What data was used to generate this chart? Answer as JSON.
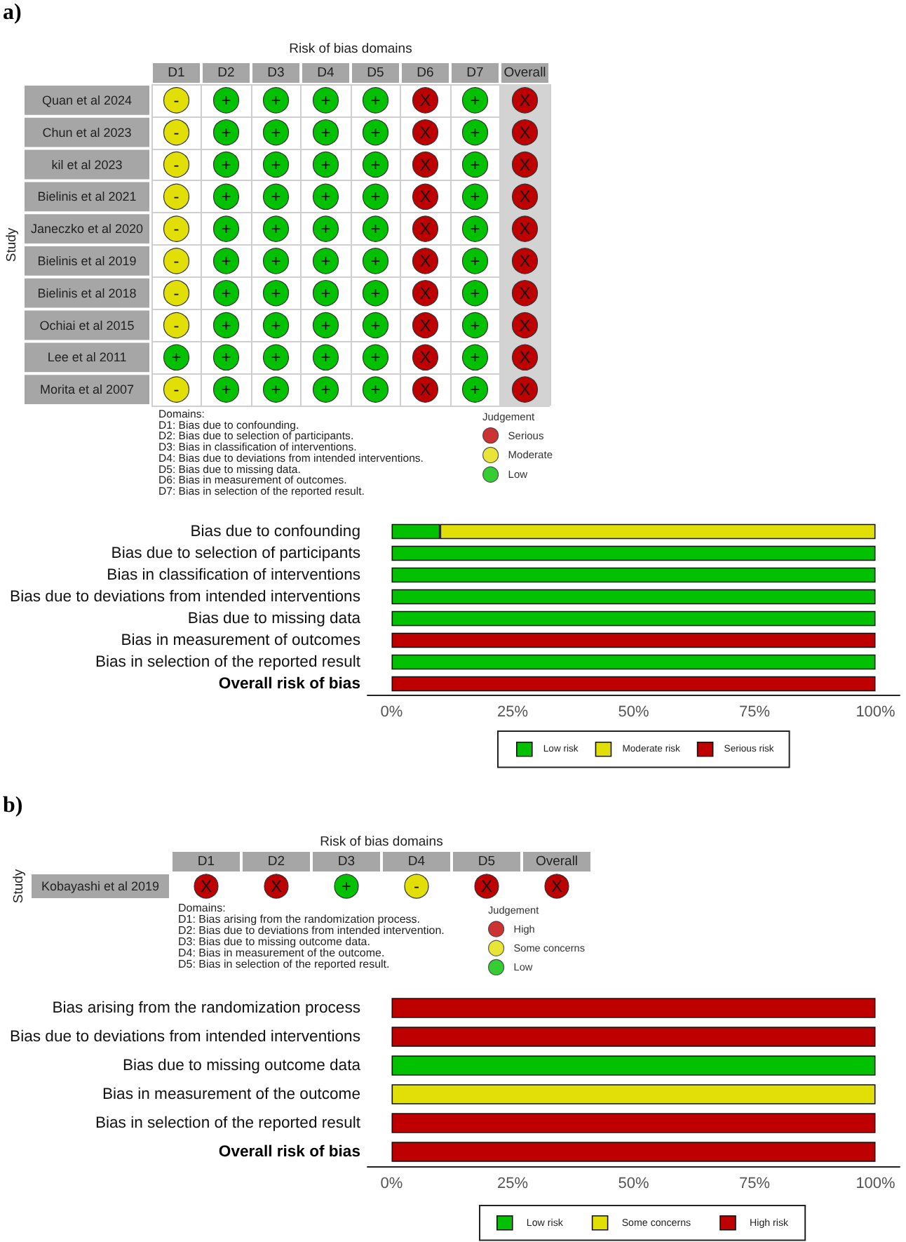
{
  "chart_data": [
    {
      "type": "heatmap",
      "title": "a)",
      "xlabel": "Risk of bias domains",
      "ylabel": "Study",
      "legend_title": "Judgement",
      "legend": "bottom right",
      "categories": [
        "D1",
        "D2",
        "D3",
        "D4",
        "D5",
        "D6",
        "D7",
        "Overall"
      ],
      "y_categories": [
        "Quan et al 2024",
        "Chun et al 2023",
        "kil et al 2023",
        "Bielinis et al 2021",
        "Janeczko et al 2020",
        "Bielinis et al 2019",
        "Bielinis et al 2018",
        "Ochiai et al 2015",
        "Lee et al 2011",
        "Morita et al 2007"
      ],
      "cells": [
        [
          "-",
          "+",
          "+",
          "+",
          "+",
          "X",
          "+",
          "X"
        ],
        [
          "-",
          "+",
          "+",
          "+",
          "+",
          "X",
          "+",
          "X"
        ],
        [
          "-",
          "+",
          "+",
          "+",
          "+",
          "X",
          "+",
          "X"
        ],
        [
          "-",
          "+",
          "+",
          "+",
          "+",
          "X",
          "+",
          "X"
        ],
        [
          "-",
          "+",
          "+",
          "+",
          "+",
          "X",
          "+",
          "X"
        ],
        [
          "-",
          "+",
          "+",
          "+",
          "+",
          "X",
          "+",
          "X"
        ],
        [
          "-",
          "+",
          "+",
          "+",
          "+",
          "X",
          "+",
          "X"
        ],
        [
          "-",
          "+",
          "+",
          "+",
          "+",
          "X",
          "+",
          "X"
        ],
        [
          "+",
          "+",
          "+",
          "+",
          "+",
          "X",
          "+",
          "X"
        ],
        [
          "-",
          "+",
          "+",
          "+",
          "+",
          "X",
          "+",
          "X"
        ]
      ],
      "colors": [
        [
          "#e2df07",
          "#02c100",
          "#02c100",
          "#02c100",
          "#02c100",
          "#bf0000",
          "#02c100",
          "#bf0000"
        ],
        [
          "#e2df07",
          "#02c100",
          "#02c100",
          "#02c100",
          "#02c100",
          "#bf0000",
          "#02c100",
          "#bf0000"
        ],
        [
          "#e2df07",
          "#02c100",
          "#02c100",
          "#02c100",
          "#02c100",
          "#bf0000",
          "#02c100",
          "#bf0000"
        ],
        [
          "#e2df07",
          "#02c100",
          "#02c100",
          "#02c100",
          "#02c100",
          "#bf0000",
          "#02c100",
          "#bf0000"
        ],
        [
          "#e2df07",
          "#02c100",
          "#02c100",
          "#02c100",
          "#02c100",
          "#bf0000",
          "#02c100",
          "#bf0000"
        ],
        [
          "#e2df07",
          "#02c100",
          "#02c100",
          "#02c100",
          "#02c100",
          "#bf0000",
          "#02c100",
          "#bf0000"
        ],
        [
          "#e2df07",
          "#02c100",
          "#02c100",
          "#02c100",
          "#02c100",
          "#bf0000",
          "#02c100",
          "#bf0000"
        ],
        [
          "#e2df07",
          "#02c100",
          "#02c100",
          "#02c100",
          "#02c100",
          "#bf0000",
          "#02c100",
          "#bf0000"
        ],
        [
          "#02c100",
          "#02c100",
          "#02c100",
          "#02c100",
          "#02c100",
          "#bf0000",
          "#02c100",
          "#bf0000"
        ],
        [
          "#e2df07",
          "#02c100",
          "#02c100",
          "#02c100",
          "#02c100",
          "#bf0000",
          "#02c100",
          "#bf0000"
        ]
      ],
      "series": [
        {
          "name": "Serious",
          "color": "#bf0000",
          "values": [
            null,
            null,
            null,
            null,
            null,
            null,
            null,
            null
          ]
        },
        {
          "name": "Moderate",
          "color": "#e2df07",
          "values": [
            null,
            null,
            null,
            null,
            null,
            null,
            null,
            null
          ]
        },
        {
          "name": "Low",
          "color": "#02c100",
          "values": [
            null,
            null,
            null,
            null,
            null,
            null,
            null,
            null
          ]
        }
      ],
      "grid": true,
      "bands": [
        {
          "axis": "x",
          "from": "Overall",
          "to": "Overall",
          "color": "#d3d3d3"
        }
      ],
      "annotations": [
        "Domains:",
        "D1: Bias due to confounding.",
        "D2: Bias due to selection of participants.",
        "D3: Bias in classification of interventions.",
        "D4: Bias due to deviations from intended interventions.",
        "D5: Bias due to missing data.",
        "D6: Bias in measurement of outcomes.",
        "D7: Bias in selection of the reported result."
      ]
    },
    {
      "type": "bar",
      "orientation": "horizontal",
      "stacked": true,
      "categories": [
        "Bias due to confounding",
        "Bias due to selection of participants",
        "Bias in classification of interventions",
        "Bias due to deviations from intended interventions",
        "Bias due to missing data",
        "Bias in measurement of outcomes",
        "Bias in selection of the reported result",
        "Overall risk of bias"
      ],
      "series": [
        {
          "name": "Low risk",
          "color": "#02c100",
          "values": [
            10,
            100,
            100,
            100,
            100,
            0,
            100,
            0
          ]
        },
        {
          "name": "Moderate risk",
          "color": "#e2df07",
          "values": [
            90,
            0,
            0,
            0,
            0,
            0,
            0,
            0
          ]
        },
        {
          "name": "Serious risk",
          "color": "#bf0000",
          "values": [
            0,
            0,
            0,
            0,
            0,
            100,
            0,
            100
          ]
        }
      ],
      "xlim": [
        -5,
        105
      ],
      "xticks": [
        {
          "value": 0,
          "label": "0%"
        },
        {
          "value": 25,
          "label": "25%"
        },
        {
          "value": 50,
          "label": "50%"
        },
        {
          "value": 75,
          "label": "75%"
        },
        {
          "value": 100,
          "label": "100%"
        }
      ],
      "legend": "bottom"
    },
    {
      "type": "heatmap",
      "title": "b)",
      "xlabel": "Risk of bias domains",
      "ylabel": "Study",
      "legend_title": "Judgement",
      "legend": "bottom right",
      "categories": [
        "D1",
        "D2",
        "D3",
        "D4",
        "D5",
        "Overall"
      ],
      "y_categories": [
        "Kobayashi et al 2019"
      ],
      "cells": [
        [
          "X",
          "X",
          "+",
          "-",
          "X",
          "X"
        ]
      ],
      "colors": [
        [
          "#bf0000",
          "#bf0000",
          "#02c100",
          "#e2df07",
          "#bf0000",
          "#bf0000"
        ]
      ],
      "series": [
        {
          "name": "High",
          "color": "#bf0000",
          "values": [
            null,
            null,
            null,
            null,
            null,
            null
          ]
        },
        {
          "name": "Some concerns",
          "color": "#e2df07",
          "values": [
            null,
            null,
            null,
            null,
            null,
            null
          ]
        },
        {
          "name": "Low",
          "color": "#02c100",
          "values": [
            null,
            null,
            null,
            null,
            null,
            null
          ]
        }
      ],
      "annotations": [
        "Domains:",
        "D1: Bias arising from the randomization process.",
        "D2: Bias due to deviations from intended intervention.",
        "D3: Bias due to missing outcome data.",
        "D4: Bias in measurement of the outcome.",
        "D5: Bias in selection of the reported result."
      ]
    },
    {
      "type": "bar",
      "orientation": "horizontal",
      "stacked": true,
      "categories": [
        "Bias arising from the randomization process",
        "Bias due to deviations from intended interventions",
        "Bias due to missing outcome data",
        "Bias in measurement of the outcome",
        "Bias in selection of the reported result",
        "Overall risk of bias"
      ],
      "series": [
        {
          "name": "Low risk",
          "color": "#02c100",
          "values": [
            0,
            0,
            100,
            0,
            0,
            0
          ]
        },
        {
          "name": "Some concerns",
          "color": "#e2df07",
          "values": [
            0,
            0,
            0,
            100,
            0,
            0
          ]
        },
        {
          "name": "High risk",
          "color": "#bf0000",
          "values": [
            100,
            100,
            0,
            0,
            100,
            100
          ]
        }
      ],
      "xlim": [
        -5,
        105
      ],
      "xticks": [
        {
          "value": 0,
          "label": "0%"
        },
        {
          "value": 25,
          "label": "25%"
        },
        {
          "value": 50,
          "label": "50%"
        },
        {
          "value": 75,
          "label": "75%"
        },
        {
          "value": 100,
          "label": "100%"
        }
      ],
      "legend": "bottom"
    }
  ]
}
